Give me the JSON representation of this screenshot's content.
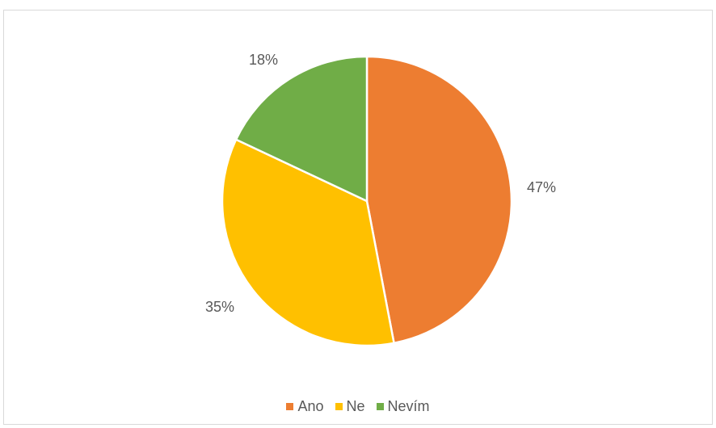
{
  "chart_data": {
    "type": "pie",
    "categories": [
      "Ano",
      "Ne",
      "Nevím"
    ],
    "values": [
      47,
      35,
      18
    ],
    "labels": [
      "47%",
      "35%",
      "18%"
    ],
    "colors": [
      "#ED7D31",
      "#FFC000",
      "#70AD47"
    ],
    "start_angle_deg": 0,
    "direction": "clockwise",
    "legend_position": "bottom",
    "title": ""
  }
}
